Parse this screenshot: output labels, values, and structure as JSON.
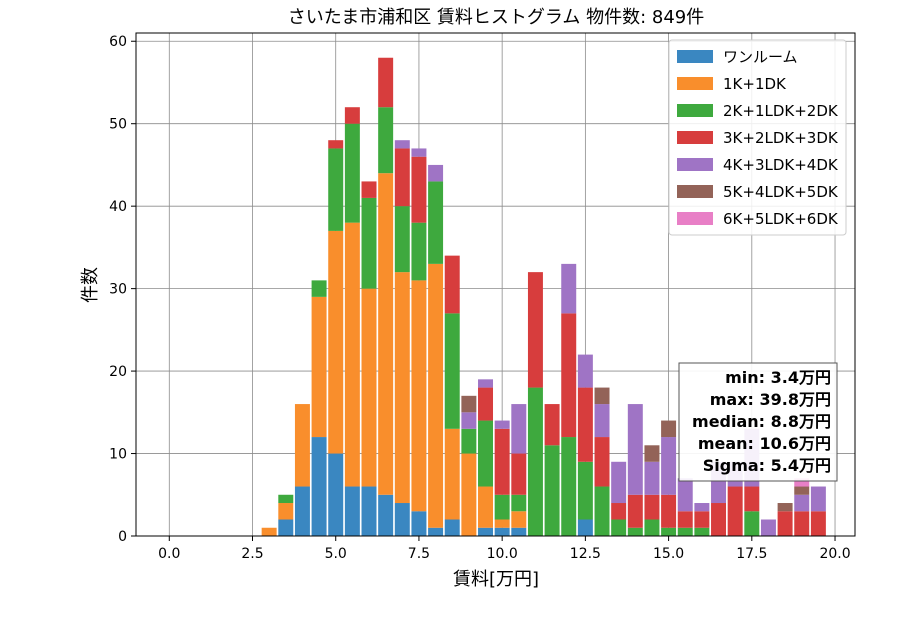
{
  "chart_data": {
    "type": "bar",
    "stacked": true,
    "title": "さいたま市浦和区 賃料ヒストグラム  物件数: 849件",
    "xlabel": "賃料[万円]",
    "ylabel": "件数",
    "xlim": [
      -1,
      20.6
    ],
    "ylim": [
      0,
      61
    ],
    "xticks": [
      0.0,
      2.5,
      5.0,
      7.5,
      10.0,
      12.5,
      15.0,
      17.5,
      20.0
    ],
    "xtick_labels": [
      "0.0",
      "2.5",
      "5.0",
      "7.5",
      "10.0",
      "12.5",
      "15.0",
      "17.5",
      "20.0"
    ],
    "yticks": [
      0,
      10,
      20,
      30,
      40,
      50,
      60
    ],
    "ytick_labels": [
      "0",
      "10",
      "20",
      "30",
      "40",
      "50",
      "60"
    ],
    "grid": true,
    "legend_position": "top-right",
    "bin_width": 0.5,
    "x": [
      2.5,
      3.0,
      3.5,
      4.0,
      4.5,
      5.0,
      5.5,
      6.0,
      6.5,
      7.0,
      7.5,
      8.0,
      8.5,
      9.0,
      9.5,
      10.0,
      10.5,
      11.0,
      11.5,
      12.0,
      12.5,
      13.0,
      13.5,
      14.0,
      14.5,
      15.0,
      15.5,
      16.0,
      16.5,
      17.0,
      17.5,
      18.0,
      18.5,
      19.0,
      19.5
    ],
    "series": [
      {
        "name": "ワンルーム",
        "color": "#3a87c1",
        "values": [
          0,
          0,
          2,
          6,
          12,
          10,
          6,
          6,
          5,
          4,
          3,
          1,
          2,
          0,
          1,
          1,
          1,
          0,
          0,
          0,
          2,
          0,
          0,
          0,
          0,
          0,
          0,
          0,
          0,
          0,
          0,
          0,
          0,
          0,
          0
        ]
      },
      {
        "name": "1K+1DK",
        "color": "#f98e2c",
        "values": [
          0,
          1,
          2,
          10,
          17,
          27,
          32,
          24,
          39,
          28,
          28,
          32,
          11,
          10,
          5,
          1,
          2,
          0,
          0,
          0,
          0,
          0,
          0,
          0,
          0,
          0,
          0,
          0,
          0,
          0,
          0,
          0,
          0,
          0,
          0
        ]
      },
      {
        "name": "2K+1LDK+2DK",
        "color": "#3ea93e",
        "values": [
          0,
          0,
          1,
          0,
          2,
          10,
          12,
          11,
          8,
          8,
          7,
          10,
          14,
          3,
          8,
          3,
          2,
          18,
          11,
          12,
          7,
          6,
          2,
          1,
          2,
          1,
          1,
          1,
          0,
          0,
          3,
          0,
          0,
          0,
          0
        ]
      },
      {
        "name": "3K+2LDK+3DK",
        "color": "#d73d3d",
        "values": [
          0,
          0,
          0,
          0,
          0,
          1,
          2,
          2,
          6,
          7,
          8,
          0,
          7,
          0,
          4,
          8,
          5,
          14,
          5,
          15,
          9,
          6,
          2,
          4,
          3,
          4,
          2,
          2,
          4,
          6,
          3,
          0,
          3,
          3,
          3
        ]
      },
      {
        "name": "4K+3LDK+4DK",
        "color": "#9f74c5",
        "values": [
          0,
          0,
          0,
          0,
          0,
          0,
          0,
          0,
          0,
          1,
          1,
          2,
          0,
          2,
          1,
          1,
          6,
          0,
          0,
          6,
          4,
          4,
          5,
          11,
          4,
          7,
          4,
          1,
          5,
          3,
          7,
          2,
          0,
          2,
          3
        ]
      },
      {
        "name": "5K+4LDK+5DK",
        "color": "#936358",
        "values": [
          0,
          0,
          0,
          0,
          0,
          0,
          0,
          0,
          0,
          0,
          0,
          0,
          0,
          2,
          0,
          0,
          0,
          0,
          0,
          0,
          0,
          2,
          0,
          0,
          2,
          2,
          0,
          0,
          0,
          0,
          0,
          0,
          1,
          1,
          0
        ]
      },
      {
        "name": "6K+5LDK+6DK",
        "color": "#e87fc6",
        "values": [
          0,
          0,
          0,
          0,
          0,
          0,
          0,
          0,
          0,
          0,
          0,
          0,
          0,
          0,
          0,
          0,
          0,
          0,
          0,
          0,
          0,
          0,
          0,
          0,
          0,
          0,
          0,
          0,
          0,
          0,
          0,
          0,
          0,
          1,
          0
        ]
      }
    ],
    "stats": [
      {
        "label": "min: 3.4万円"
      },
      {
        "label": "max: 39.8万円"
      },
      {
        "label": "median: 8.8万円"
      },
      {
        "label": "mean: 10.6万円"
      },
      {
        "label": "Sigma: 5.4万円"
      }
    ]
  }
}
